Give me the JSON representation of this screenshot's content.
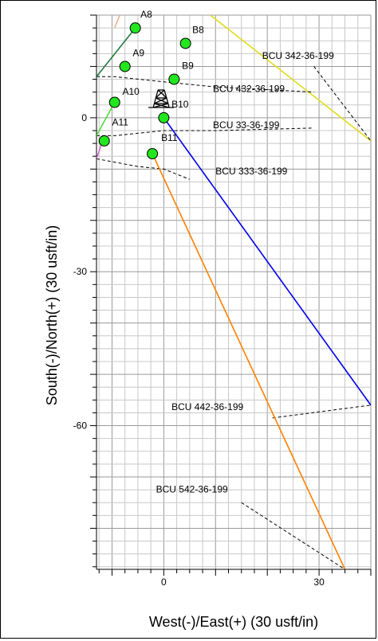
{
  "chart_data": {
    "type": "scatter",
    "xlabel": "West(-)/East(+) (30 usft/in)",
    "ylabel": "South(-)/North(+) (30 usft/in)",
    "xlim": [
      -13,
      40
    ],
    "ylim": [
      -88,
      20
    ],
    "xticks": [
      0,
      30
    ],
    "yticks": [
      0,
      -30,
      -60
    ],
    "grid": true,
    "minor_step": 2.5,
    "major_step": 10,
    "surface_points": [
      {
        "name": "A8",
        "x": -5.5,
        "y": 17.5
      },
      {
        "name": "B8",
        "x": 4.2,
        "y": 14.5
      },
      {
        "name": "A9",
        "x": -7.5,
        "y": 10
      },
      {
        "name": "B9",
        "x": 2,
        "y": 7.5
      },
      {
        "name": "A10",
        "x": -9.5,
        "y": 3
      },
      {
        "name": "B10",
        "x": 0,
        "y": 0
      },
      {
        "name": "A11",
        "x": -11.5,
        "y": -4.5
      },
      {
        "name": "B11",
        "x": -2.2,
        "y": -7
      }
    ],
    "wellpaths": [
      {
        "name": "BCU 342-36-199",
        "color": "#e0dc1a",
        "style": "solid",
        "points": [
          [
            9,
            20
          ],
          [
            40,
            -4.5
          ]
        ]
      },
      {
        "name": "",
        "color": "#000000",
        "style": "dashed",
        "points": [
          [
            29,
            10
          ],
          [
            40,
            -4.5
          ]
        ]
      },
      {
        "name": "BCU 432-36-199",
        "color": "#000000",
        "style": "dashed",
        "points": [
          [
            -13,
            8
          ],
          [
            -9.5,
            8
          ],
          [
            0,
            7
          ],
          [
            10,
            6
          ],
          [
            29,
            5
          ]
        ]
      },
      {
        "name": "BCU 33-36-199",
        "color": "#000000",
        "style": "dashed",
        "points": [
          [
            -13,
            -3.5
          ],
          [
            -9.5,
            -3.5
          ],
          [
            0,
            -2.5
          ],
          [
            10,
            -2.5
          ],
          [
            29,
            -2
          ]
        ]
      },
      {
        "name": "BCU 333-36-199",
        "color": "#000000",
        "style": "dashed",
        "points": [
          [
            -13,
            -8
          ],
          [
            -5,
            -9.5
          ],
          [
            0,
            -10
          ],
          [
            5,
            -12
          ]
        ]
      },
      {
        "name": "BCU 442-36-199",
        "color": "#0000ee",
        "style": "solid",
        "points": [
          [
            0,
            0
          ],
          [
            40,
            -56
          ]
        ]
      },
      {
        "name": "",
        "color": "#000000",
        "style": "dashed",
        "points": [
          [
            21,
            -58.5
          ],
          [
            40,
            -56
          ]
        ]
      },
      {
        "name": "BCU 542-36-199",
        "color": "#ff8000",
        "style": "solid",
        "points": [
          [
            -2.2,
            -7
          ],
          [
            35,
            -88
          ]
        ]
      },
      {
        "name": "",
        "color": "#000000",
        "style": "dashed",
        "points": [
          [
            15,
            -75
          ],
          [
            35,
            -88
          ]
        ]
      },
      {
        "name": "",
        "color": "#1e7a3c",
        "style": "solid",
        "points": [
          [
            -13,
            8
          ],
          [
            -5.5,
            17.5
          ]
        ]
      },
      {
        "name": "",
        "color": "#4fdc3c",
        "style": "solid",
        "points": [
          [
            -13,
            -3.5
          ],
          [
            -9.5,
            3
          ]
        ]
      },
      {
        "name": "",
        "color": "#f0b090",
        "style": "solid",
        "points": [
          [
            -9.5,
            17.5
          ],
          [
            -8.5,
            20
          ]
        ]
      },
      {
        "name": "",
        "color": "#d06ad0",
        "style": "solid",
        "points": [
          [
            -13,
            -8
          ],
          [
            -12,
            -5
          ]
        ]
      }
    ],
    "labels": [
      {
        "text": "A8",
        "x": -4.5,
        "y": 19.5
      },
      {
        "text": "B8",
        "x": 5.5,
        "y": 16.5
      },
      {
        "text": "A9",
        "x": -6,
        "y": 12
      },
      {
        "text": "B9",
        "x": 3.5,
        "y": 9.5
      },
      {
        "text": "A10",
        "x": -8,
        "y": 4.5
      },
      {
        "text": "B10",
        "x": 1.5,
        "y": 2
      },
      {
        "text": "A11",
        "x": -10,
        "y": -1.5
      },
      {
        "text": "B11",
        "x": -0.5,
        "y": -4.5
      },
      {
        "text": "BCU 342-36-199",
        "x": 19,
        "y": 11.5
      },
      {
        "text": "BCU 432-36-199",
        "x": 9.5,
        "y": 5
      },
      {
        "text": "BCU 33-36-199",
        "x": 9.5,
        "y": -2
      },
      {
        "text": "BCU 333-36-199",
        "x": 10,
        "y": -11
      },
      {
        "text": "BCU 442-36-199",
        "x": 1.5,
        "y": -57
      },
      {
        "text": "BCU 542-36-199",
        "x": -1.5,
        "y": -73
      }
    ],
    "rig_symbol": {
      "x": -0.5,
      "y": 2
    }
  }
}
